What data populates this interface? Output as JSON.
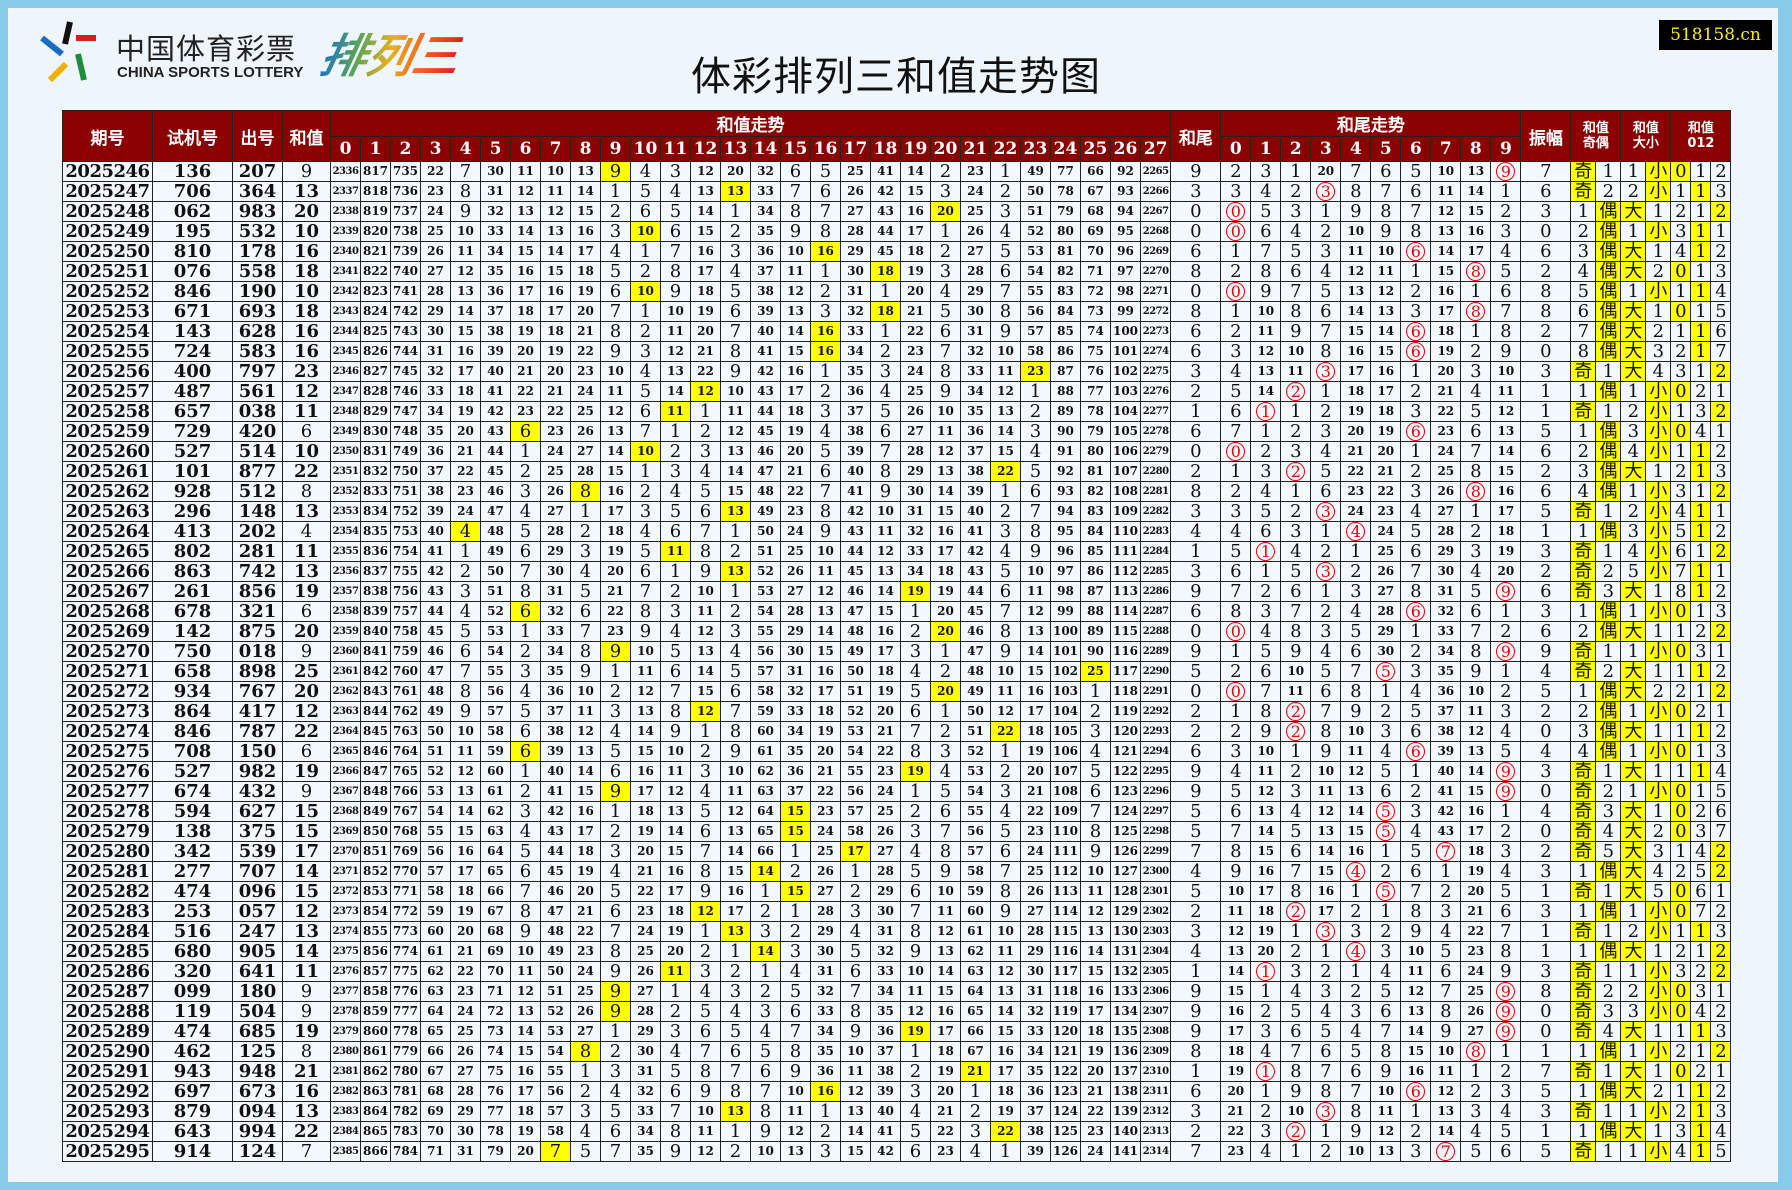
{
  "logo": {
    "cn": "中国体育彩票",
    "en": "CHINA SPORTS LOTTERY",
    "game": "排列三"
  },
  "title": "体彩排列三和值走势图",
  "watermark": "518158.cn",
  "colors": {
    "header_bg": "#8b0000",
    "hit_bg": "#ffff00",
    "tail_circle": "#e00000",
    "frame": "#87cbe8"
  },
  "headers": {
    "period": "期号",
    "trial": "试机号",
    "draw": "出号",
    "sum": "和值",
    "sum_trend": "和值走势",
    "tail": "和尾",
    "tail_trend": "和尾走势",
    "amplitude": "振幅",
    "odd_even": "和值奇偶",
    "big_small": "和值大小",
    "mod3": "和值012",
    "odd_label": "奇",
    "even_label": "偶",
    "big_label": "大",
    "small_label": "小"
  },
  "sum_columns": [
    0,
    1,
    2,
    3,
    4,
    5,
    6,
    7,
    8,
    9,
    10,
    11,
    12,
    13,
    14,
    15,
    16,
    17,
    18,
    19,
    20,
    21,
    22,
    23,
    24,
    25,
    26,
    27
  ],
  "tail_columns": [
    0,
    1,
    2,
    3,
    4,
    5,
    6,
    7,
    8,
    9
  ],
  "mod3_columns": [
    0,
    1,
    2
  ],
  "first_row_omission": {
    "sum": [
      2336,
      817,
      735,
      22,
      7,
      30,
      11,
      10,
      13,
      0,
      4,
      3,
      12,
      20,
      32,
      6,
      5,
      25,
      41,
      14,
      2,
      23,
      1,
      49,
      77,
      66,
      92,
      2265
    ],
    "tail": [
      2,
      3,
      1,
      20,
      7,
      6,
      5,
      10,
      13,
      0
    ],
    "odd_even": [
      0,
      1
    ],
    "big_small": [
      1,
      0
    ],
    "mod3": [
      0,
      1,
      2
    ],
    "first_amplitude": 7
  },
  "rows": [
    {
      "period": "2025246",
      "trial": "136",
      "draw": "207",
      "sum": 9
    },
    {
      "period": "2025247",
      "trial": "706",
      "draw": "364",
      "sum": 13
    },
    {
      "period": "2025248",
      "trial": "062",
      "draw": "983",
      "sum": 20
    },
    {
      "period": "2025249",
      "trial": "195",
      "draw": "532",
      "sum": 10
    },
    {
      "period": "2025250",
      "trial": "810",
      "draw": "178",
      "sum": 16
    },
    {
      "period": "2025251",
      "trial": "076",
      "draw": "558",
      "sum": 18
    },
    {
      "period": "2025252",
      "trial": "846",
      "draw": "190",
      "sum": 10
    },
    {
      "period": "2025253",
      "trial": "671",
      "draw": "693",
      "sum": 18
    },
    {
      "period": "2025254",
      "trial": "143",
      "draw": "628",
      "sum": 16
    },
    {
      "period": "2025255",
      "trial": "724",
      "draw": "583",
      "sum": 16
    },
    {
      "period": "2025256",
      "trial": "400",
      "draw": "797",
      "sum": 23
    },
    {
      "period": "2025257",
      "trial": "487",
      "draw": "561",
      "sum": 12
    },
    {
      "period": "2025258",
      "trial": "657",
      "draw": "038",
      "sum": 11
    },
    {
      "period": "2025259",
      "trial": "729",
      "draw": "420",
      "sum": 6
    },
    {
      "period": "2025260",
      "trial": "527",
      "draw": "514",
      "sum": 10
    },
    {
      "period": "2025261",
      "trial": "101",
      "draw": "877",
      "sum": 22
    },
    {
      "period": "2025262",
      "trial": "928",
      "draw": "512",
      "sum": 8
    },
    {
      "period": "2025263",
      "trial": "296",
      "draw": "148",
      "sum": 13
    },
    {
      "period": "2025264",
      "trial": "413",
      "draw": "202",
      "sum": 4
    },
    {
      "period": "2025265",
      "trial": "802",
      "draw": "281",
      "sum": 11
    },
    {
      "period": "2025266",
      "trial": "863",
      "draw": "742",
      "sum": 13
    },
    {
      "period": "2025267",
      "trial": "261",
      "draw": "856",
      "sum": 19
    },
    {
      "period": "2025268",
      "trial": "678",
      "draw": "321",
      "sum": 6
    },
    {
      "period": "2025269",
      "trial": "142",
      "draw": "875",
      "sum": 20
    },
    {
      "period": "2025270",
      "trial": "750",
      "draw": "018",
      "sum": 9
    },
    {
      "period": "2025271",
      "trial": "658",
      "draw": "898",
      "sum": 25
    },
    {
      "period": "2025272",
      "trial": "934",
      "draw": "767",
      "sum": 20
    },
    {
      "period": "2025273",
      "trial": "864",
      "draw": "417",
      "sum": 12
    },
    {
      "period": "2025274",
      "trial": "846",
      "draw": "787",
      "sum": 22
    },
    {
      "period": "2025275",
      "trial": "708",
      "draw": "150",
      "sum": 6
    },
    {
      "period": "2025276",
      "trial": "527",
      "draw": "982",
      "sum": 19
    },
    {
      "period": "2025277",
      "trial": "674",
      "draw": "432",
      "sum": 9
    },
    {
      "period": "2025278",
      "trial": "594",
      "draw": "627",
      "sum": 15
    },
    {
      "period": "2025279",
      "trial": "138",
      "draw": "375",
      "sum": 15
    },
    {
      "period": "2025280",
      "trial": "342",
      "draw": "539",
      "sum": 17
    },
    {
      "period": "2025281",
      "trial": "277",
      "draw": "707",
      "sum": 14
    },
    {
      "period": "2025282",
      "trial": "474",
      "draw": "096",
      "sum": 15
    },
    {
      "period": "2025283",
      "trial": "253",
      "draw": "057",
      "sum": 12
    },
    {
      "period": "2025284",
      "trial": "516",
      "draw": "247",
      "sum": 13
    },
    {
      "period": "2025285",
      "trial": "680",
      "draw": "905",
      "sum": 14
    },
    {
      "period": "2025286",
      "trial": "320",
      "draw": "641",
      "sum": 11
    },
    {
      "period": "2025287",
      "trial": "099",
      "draw": "180",
      "sum": 9
    },
    {
      "period": "2025288",
      "trial": "119",
      "draw": "504",
      "sum": 9
    },
    {
      "period": "2025289",
      "trial": "474",
      "draw": "685",
      "sum": 19
    },
    {
      "period": "2025290",
      "trial": "462",
      "draw": "125",
      "sum": 8
    },
    {
      "period": "2025291",
      "trial": "943",
      "draw": "948",
      "sum": 21
    },
    {
      "period": "2025292",
      "trial": "697",
      "draw": "673",
      "sum": 16
    },
    {
      "period": "2025293",
      "trial": "879",
      "draw": "094",
      "sum": 13
    },
    {
      "period": "2025294",
      "trial": "643",
      "draw": "994",
      "sum": 22
    },
    {
      "period": "2025295",
      "trial": "914",
      "draw": "124",
      "sum": 7
    }
  ]
}
